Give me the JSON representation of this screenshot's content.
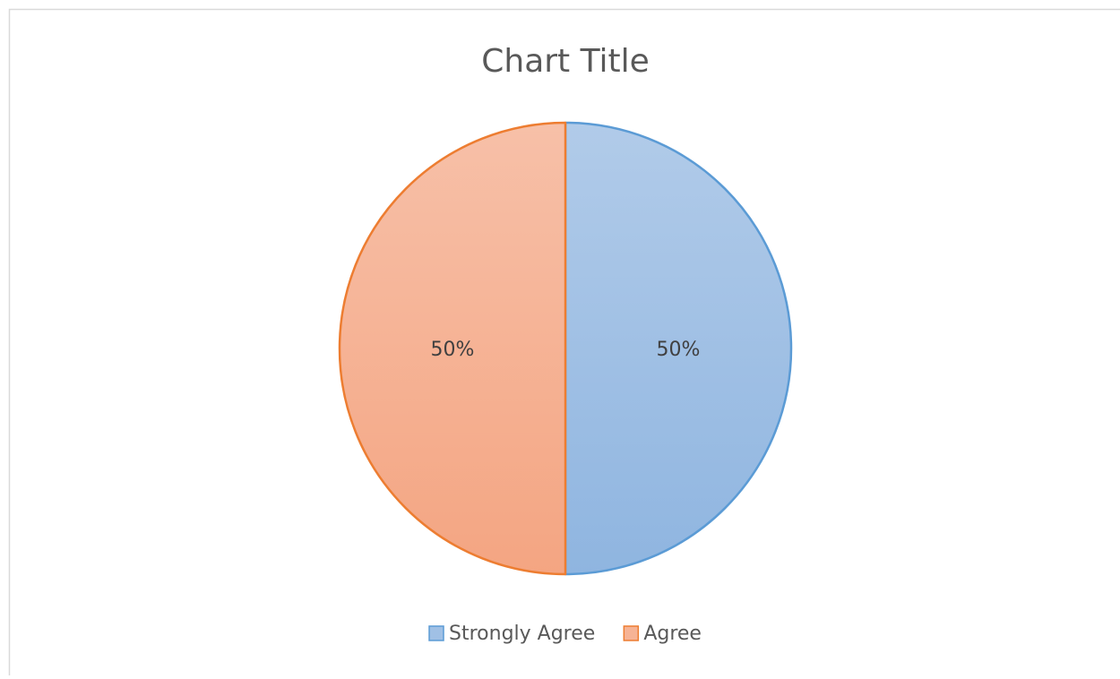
{
  "chart_data": {
    "type": "pie",
    "title": "Chart Title",
    "categories": [
      "Strongly Agree",
      "Agree"
    ],
    "values": [
      50,
      50
    ],
    "value_labels": [
      "50%",
      "50%"
    ],
    "colors": [
      "#8fb5e0",
      "#f4a582"
    ],
    "edge_colors": [
      "#5b9bd5",
      "#ed7d31"
    ],
    "legend": "bottom"
  }
}
